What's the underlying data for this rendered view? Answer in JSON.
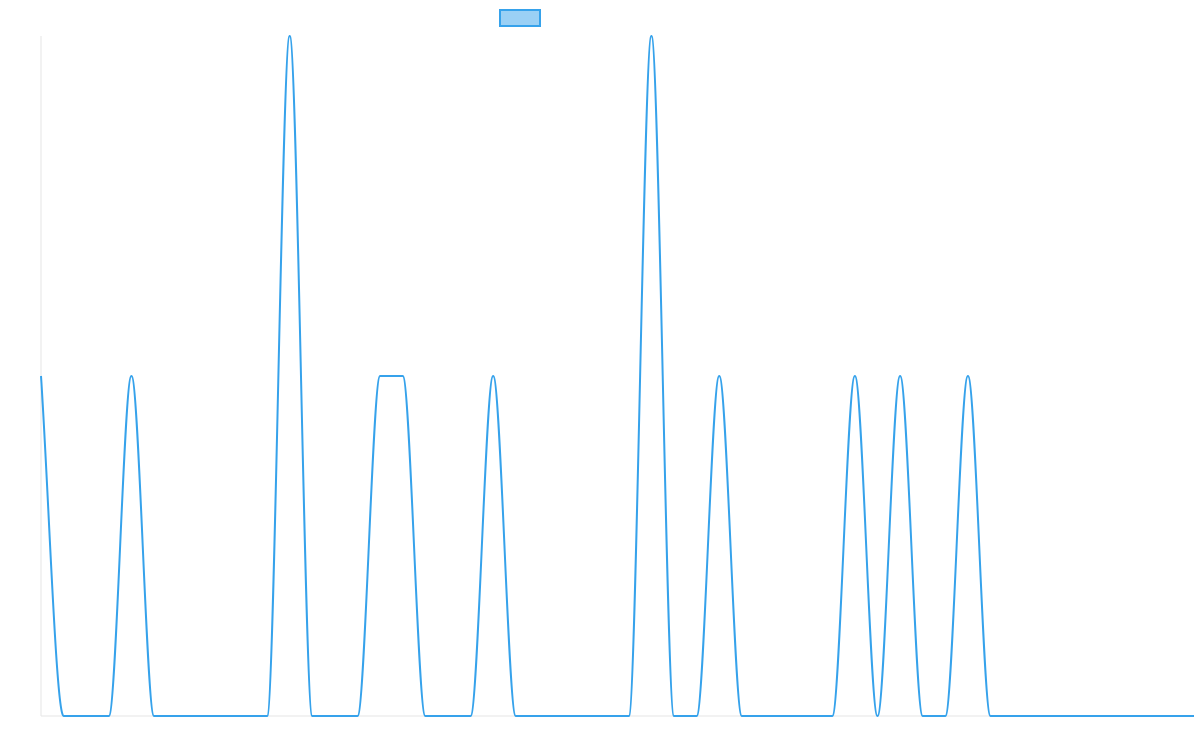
{
  "chart_data": {
    "type": "line",
    "title": "",
    "xlabel": "",
    "ylabel": "",
    "legend": {
      "position": "top-center",
      "entries": [
        {
          "label": "",
          "color": "#36a2eb",
          "fill": "#9ad0f5"
        }
      ]
    },
    "grid": false,
    "ylim": [
      0,
      2
    ],
    "x": [
      0,
      1,
      2,
      3,
      4,
      5,
      6,
      7,
      8,
      9,
      10,
      11,
      12,
      13,
      14,
      15,
      16,
      17,
      18,
      19,
      20,
      21,
      22,
      23,
      24,
      25,
      26,
      27,
      28,
      29,
      30,
      31,
      32,
      33,
      34,
      35,
      36,
      37,
      38,
      39,
      40,
      41,
      42,
      43,
      44,
      45,
      46,
      47,
      48,
      49,
      50,
      51
    ],
    "series": [
      {
        "name": "",
        "color": "#36a2eb",
        "values": [
          1,
          0,
          0,
          0,
          1,
          0,
          0,
          0,
          0,
          0,
          0,
          2,
          0,
          0,
          0,
          1,
          1,
          0,
          0,
          0,
          1,
          0,
          0,
          0,
          0,
          0,
          0,
          2,
          0,
          0,
          1,
          0,
          0,
          0,
          0,
          0,
          1,
          0,
          1,
          0,
          0,
          1,
          0,
          0,
          0,
          0,
          0,
          0,
          0,
          0,
          0,
          0
        ]
      }
    ]
  }
}
